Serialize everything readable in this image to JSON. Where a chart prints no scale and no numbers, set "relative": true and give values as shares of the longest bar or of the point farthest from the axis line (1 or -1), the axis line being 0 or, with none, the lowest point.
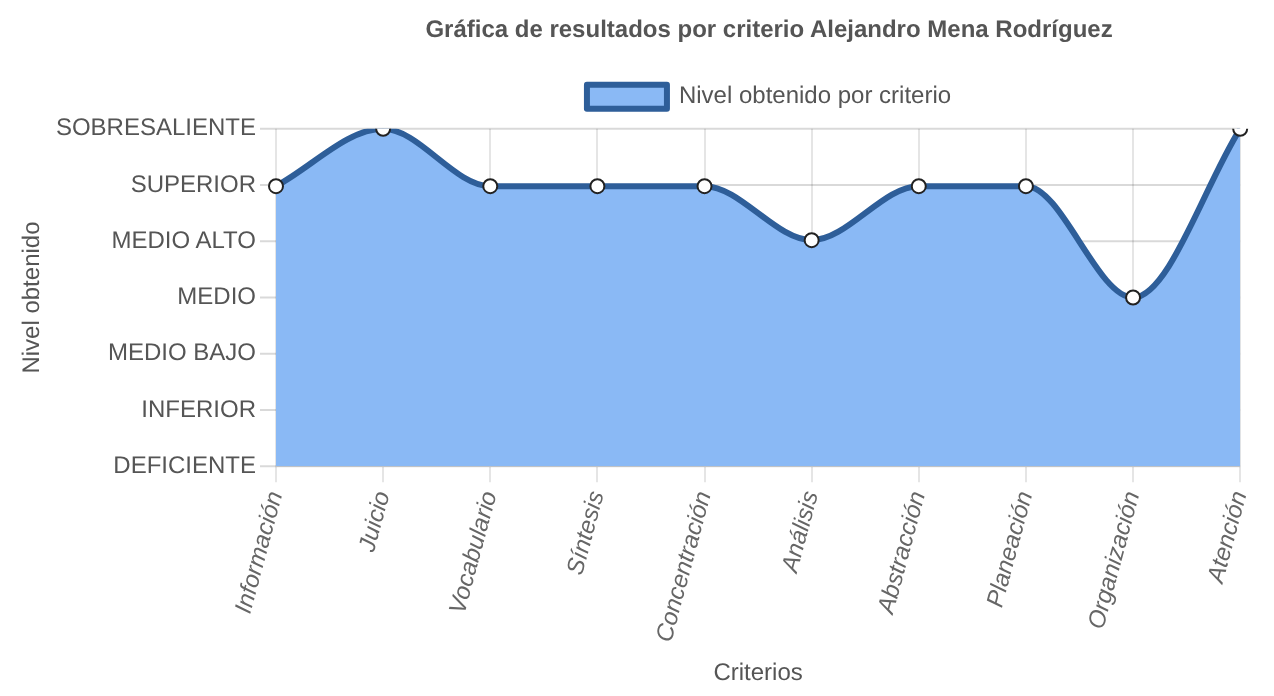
{
  "chart_data": {
    "type": "area",
    "title": "Gráfica de resultados por criterio Alejandro Mena Rodríguez",
    "xlabel": "Criterios",
    "relative": true,
    "categories": [
      "Información",
      "Juicio",
      "Vocabulario",
      "Síntesis",
      "Concentración",
      "Análisis",
      "Abstracción",
      "Planeación",
      "Organización",
      "Atención"
    ],
    "series": [
      {
        "name": "Nivel obtenido por criterio",
        "color": "#2e5e99",
        "values": [
          0.83,
          1,
          0.83,
          0.83,
          0.83,
          0.67,
          0.83,
          0.83,
          0.5,
          1
        ]
      }
    ],
    "annotations": [
      "Nivel obtenido",
      "DEFICIENTE",
      "INFERIOR",
      "MEDIO BAJO",
      "MEDIO",
      "MEDIO ALTO",
      "SUPERIOR",
      "SOBRESALIENTE"
    ],
    "grid": "x",
    "legend": "top",
    "marker": "circle",
    "line_style": "solid"
  }
}
